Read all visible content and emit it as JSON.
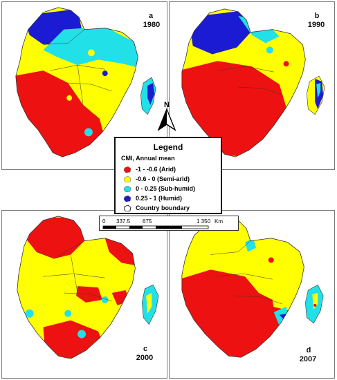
{
  "panels": [
    {
      "letter": "a",
      "year": "1980"
    },
    {
      "letter": "b",
      "year": "1990"
    },
    {
      "letter": "c",
      "year": "2000"
    },
    {
      "letter": "d",
      "year": "2007"
    }
  ],
  "north_arrow": {
    "label": "N"
  },
  "legend": {
    "title": "Legend",
    "subtitle": "CMI, Annual mean",
    "items": [
      {
        "label": "-1 - -0.6 (Arid)",
        "color": "#ee1111"
      },
      {
        "label": "-0.6 - 0 (Semi-arid)",
        "color": "#ffff00"
      },
      {
        "label": "0 - 0.25 (Sub-humid)",
        "color": "#22e0e8"
      },
      {
        "label": "0.25 - 1 (Humid)",
        "color": "#1b1bd4"
      },
      {
        "label": "Country boundary",
        "color": "#ffffff"
      }
    ]
  },
  "scale_bar": {
    "ticks": [
      "0",
      "337.5",
      "675",
      "1 350"
    ],
    "unit": "Km"
  },
  "colors": {
    "arid": "#ee1111",
    "semi_arid": "#ffff00",
    "sub_humid": "#22e0e8",
    "humid": "#1b1bd4",
    "boundary": "#333333"
  }
}
